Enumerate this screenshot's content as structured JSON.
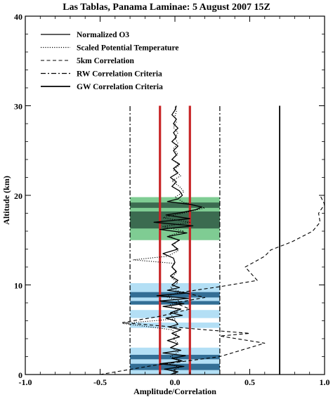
{
  "chart_data": {
    "type": "line",
    "title": "Las Tablas, Panama Laminae: 5 August 2007 15Z",
    "xlabel": "Amplitude/Correlation",
    "ylabel": "Altitude (km)",
    "xlim": [
      -1.0,
      1.0
    ],
    "ylim": [
      0,
      40
    ],
    "xticks": [
      "-1.0",
      "-0.5",
      "0.0",
      "0.5",
      "1.0"
    ],
    "yticks": [
      "0",
      "10",
      "20",
      "30",
      "40"
    ],
    "grid": false,
    "legend_position": "top-left",
    "legend": [
      {
        "label": "Normalized O3",
        "style": "solid",
        "stroke_width": 1.2
      },
      {
        "label": "Scaled Potential Temperature",
        "style": "dotted",
        "stroke_width": 1.2
      },
      {
        "label": "5km Correlation",
        "style": "dashed",
        "stroke_width": 1.0
      },
      {
        "label": "RW Correlation Criteria",
        "style": "dashdot",
        "stroke_width": 1.2
      },
      {
        "label": "GW Correlation Criteria",
        "style": "solid",
        "stroke_width": 1.8
      }
    ],
    "colors": {
      "green_light": "#7fcc93",
      "green_dark": "#3b6b50",
      "blue_light": "#b3dff5",
      "blue_dark": "#336e95",
      "red": "#c82527",
      "black": "#000000"
    },
    "bands": [
      {
        "kind": "light",
        "color": "green",
        "y": [
          15.0,
          19.8
        ],
        "x": [
          -0.3,
          0.3
        ]
      },
      {
        "kind": "dark",
        "color": "green",
        "y": [
          18.6,
          19.2
        ],
        "x": [
          -0.3,
          0.3
        ]
      },
      {
        "kind": "dark",
        "color": "green",
        "y": [
          16.3,
          18.2
        ],
        "x": [
          -0.3,
          0.3
        ]
      },
      {
        "kind": "light",
        "color": "blue",
        "y": [
          7.8,
          10.2
        ],
        "x": [
          -0.3,
          0.3
        ]
      },
      {
        "kind": "light",
        "color": "blue",
        "y": [
          6.3,
          7.2
        ],
        "x": [
          -0.3,
          0.3
        ]
      },
      {
        "kind": "light",
        "color": "blue",
        "y": [
          5.2,
          5.8
        ],
        "x": [
          -0.3,
          0.3
        ]
      },
      {
        "kind": "dark",
        "color": "blue",
        "y": [
          8.6,
          9.2
        ],
        "x": [
          -0.3,
          0.3
        ]
      },
      {
        "kind": "dark",
        "color": "blue",
        "y": [
          7.8,
          8.2
        ],
        "x": [
          -0.3,
          0.3
        ]
      },
      {
        "kind": "light",
        "color": "blue",
        "y": [
          0.0,
          3.0
        ],
        "x": [
          -0.3,
          0.3
        ]
      },
      {
        "kind": "dark",
        "color": "blue",
        "y": [
          1.7,
          2.2
        ],
        "x": [
          -0.3,
          0.3
        ]
      },
      {
        "kind": "dark",
        "color": "blue",
        "y": [
          0.5,
          1.2
        ],
        "x": [
          -0.3,
          0.3
        ]
      }
    ],
    "criteria_lines": [
      {
        "name": "RW Correlation Criteria",
        "x": -0.3,
        "style": "dashdot",
        "y": [
          0,
          30
        ]
      },
      {
        "name": "RW Correlation Criteria",
        "x": 0.3,
        "style": "dashdot",
        "y": [
          0,
          30
        ]
      },
      {
        "name": "GW Correlation Criteria",
        "x": 0.7,
        "style": "solid",
        "y": [
          0,
          30
        ]
      },
      {
        "name": "Red threshold",
        "x": -0.1,
        "style": "red",
        "y": [
          0,
          30
        ]
      },
      {
        "name": "Red threshold",
        "x": 0.1,
        "style": "red",
        "y": [
          0,
          30
        ]
      }
    ],
    "series": [
      {
        "name": "Normalized O3",
        "style": "solid",
        "points": [
          [
            -0.03,
            0.0
          ],
          [
            0.02,
            0.3
          ],
          [
            -0.07,
            0.6
          ],
          [
            0.06,
            0.9
          ],
          [
            -0.1,
            1.2
          ],
          [
            0.05,
            1.5
          ],
          [
            -0.02,
            1.8
          ],
          [
            0.07,
            2.1
          ],
          [
            -0.08,
            2.4
          ],
          [
            0.04,
            2.7
          ],
          [
            -0.03,
            3.0
          ],
          [
            0.02,
            3.4
          ],
          [
            -0.05,
            3.8
          ],
          [
            0.03,
            4.2
          ],
          [
            -0.02,
            4.6
          ],
          [
            0.04,
            5.0
          ],
          [
            -0.04,
            5.3
          ],
          [
            0.02,
            5.6
          ],
          [
            0.0,
            6.0
          ],
          [
            -0.06,
            6.3
          ],
          [
            0.05,
            6.6
          ],
          [
            -0.03,
            6.9
          ],
          [
            0.04,
            7.3
          ],
          [
            -0.08,
            7.6
          ],
          [
            0.06,
            7.9
          ],
          [
            -0.1,
            8.2
          ],
          [
            0.09,
            8.5
          ],
          [
            -0.12,
            8.8
          ],
          [
            0.08,
            9.1
          ],
          [
            -0.05,
            9.4
          ],
          [
            0.03,
            9.7
          ],
          [
            -0.02,
            10.0
          ],
          [
            0.02,
            10.5
          ],
          [
            -0.03,
            11.0
          ],
          [
            0.01,
            11.5
          ],
          [
            -0.02,
            12.0
          ],
          [
            0.0,
            12.5
          ],
          [
            -0.01,
            13.0
          ],
          [
            -0.08,
            13.5
          ],
          [
            0.02,
            14.0
          ],
          [
            -0.02,
            14.5
          ],
          [
            0.03,
            15.0
          ],
          [
            -0.05,
            15.4
          ],
          [
            0.08,
            15.8
          ],
          [
            -0.1,
            16.2
          ],
          [
            0.12,
            16.6
          ],
          [
            -0.14,
            17.0
          ],
          [
            0.1,
            17.4
          ],
          [
            -0.06,
            17.8
          ],
          [
            0.05,
            18.1
          ],
          [
            0.14,
            18.4
          ],
          [
            0.18,
            18.7
          ],
          [
            0.1,
            19.0
          ],
          [
            -0.05,
            19.3
          ],
          [
            0.02,
            19.6
          ],
          [
            0.05,
            20.0
          ],
          [
            0.03,
            20.5
          ],
          [
            -0.02,
            21.0
          ],
          [
            0.01,
            21.5
          ],
          [
            -0.03,
            22.0
          ],
          [
            0.02,
            22.5
          ],
          [
            -0.01,
            23.0
          ],
          [
            0.03,
            23.5
          ],
          [
            -0.02,
            24.0
          ],
          [
            0.01,
            24.5
          ],
          [
            -0.01,
            25.0
          ],
          [
            0.02,
            25.5
          ],
          [
            -0.02,
            26.0
          ],
          [
            0.01,
            26.5
          ],
          [
            -0.01,
            27.0
          ],
          [
            0.02,
            27.5
          ],
          [
            -0.01,
            28.0
          ],
          [
            0.01,
            28.5
          ],
          [
            -0.02,
            29.0
          ],
          [
            0.0,
            29.5
          ],
          [
            0.01,
            30.0
          ]
        ]
      },
      {
        "name": "Scaled Potential Temperature",
        "style": "dotted",
        "points": [
          [
            0.02,
            0.0
          ],
          [
            -0.02,
            0.4
          ],
          [
            0.03,
            0.8
          ],
          [
            -0.04,
            1.2
          ],
          [
            0.04,
            1.6
          ],
          [
            -0.03,
            2.0
          ],
          [
            0.02,
            2.5
          ],
          [
            -0.02,
            3.0
          ],
          [
            0.02,
            3.5
          ],
          [
            -0.01,
            4.0
          ],
          [
            0.01,
            4.5
          ],
          [
            -0.02,
            5.0
          ],
          [
            -0.35,
            5.7
          ],
          [
            0.0,
            6.2
          ],
          [
            -0.03,
            6.7
          ],
          [
            0.02,
            7.2
          ],
          [
            -0.04,
            7.7
          ],
          [
            0.03,
            8.2
          ],
          [
            -0.06,
            8.7
          ],
          [
            0.04,
            9.2
          ],
          [
            -0.03,
            9.7
          ],
          [
            0.02,
            10.2
          ],
          [
            -0.02,
            10.8
          ],
          [
            0.01,
            11.4
          ],
          [
            -0.02,
            12.0
          ],
          [
            0.0,
            12.4
          ],
          [
            -0.28,
            12.8
          ],
          [
            -0.05,
            13.2
          ],
          [
            0.02,
            13.8
          ],
          [
            -0.01,
            14.4
          ],
          [
            0.02,
            15.0
          ],
          [
            -0.04,
            15.5
          ],
          [
            0.06,
            16.0
          ],
          [
            -0.08,
            16.5
          ],
          [
            0.1,
            17.0
          ],
          [
            -0.08,
            17.5
          ],
          [
            0.05,
            18.0
          ],
          [
            0.2,
            18.6
          ],
          [
            0.06,
            19.2
          ],
          [
            0.0,
            19.8
          ],
          [
            0.06,
            20.4
          ],
          [
            0.03,
            21.0
          ],
          [
            -0.02,
            21.6
          ],
          [
            0.04,
            22.2
          ],
          [
            -0.01,
            22.8
          ],
          [
            0.03,
            23.4
          ],
          [
            -0.02,
            24.0
          ],
          [
            0.02,
            24.6
          ],
          [
            -0.01,
            25.2
          ],
          [
            0.02,
            25.8
          ],
          [
            0.0,
            26.4
          ],
          [
            0.02,
            27.0
          ],
          [
            -0.01,
            27.6
          ],
          [
            0.01,
            28.2
          ],
          [
            0.0,
            28.8
          ],
          [
            0.01,
            29.4
          ],
          [
            0.0,
            30.0
          ]
        ]
      },
      {
        "name": "5km Correlation",
        "style": "dashed",
        "points": [
          [
            -0.5,
            0.0
          ],
          [
            -0.15,
            1.0
          ],
          [
            0.3,
            2.0
          ],
          [
            0.6,
            3.5
          ],
          [
            0.3,
            4.3
          ],
          [
            0.5,
            4.6
          ],
          [
            0.2,
            5.0
          ],
          [
            -0.35,
            5.8
          ],
          [
            -0.1,
            6.5
          ],
          [
            0.1,
            7.3
          ],
          [
            0.0,
            8.0
          ],
          [
            0.2,
            8.6
          ],
          [
            0.05,
            9.2
          ],
          [
            0.3,
            9.8
          ],
          [
            0.55,
            10.5
          ],
          [
            0.47,
            12.0
          ],
          [
            0.6,
            13.2
          ],
          [
            0.64,
            13.9
          ],
          [
            0.78,
            14.8
          ],
          [
            0.92,
            16.0
          ],
          [
            0.97,
            17.0
          ],
          [
            0.96,
            18.0
          ],
          [
            1.0,
            19.0
          ],
          [
            0.97,
            20.0
          ]
        ]
      }
    ]
  }
}
